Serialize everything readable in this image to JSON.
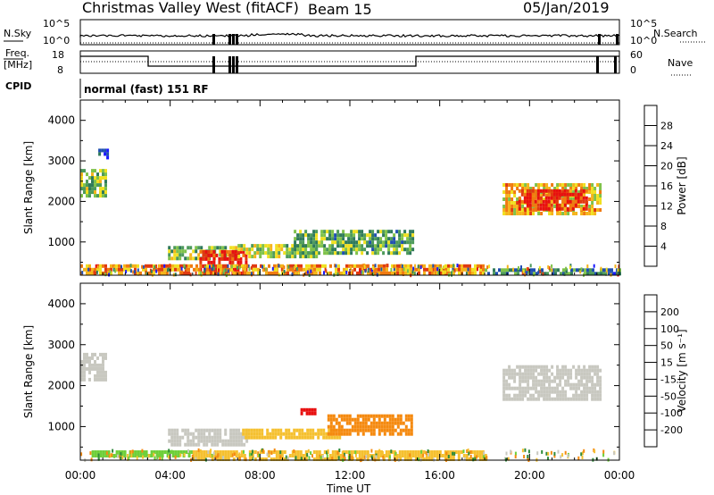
{
  "header": {
    "radar": "Christmas Valley West (fitACF)",
    "beam": "Beam 15",
    "date": "05/Jan/2019"
  },
  "ancillary": {
    "nsky_label": "N.Sky",
    "nsearch_label": "N.Search",
    "freq_label_1": "Freq.",
    "freq_label_2": "[MHz]",
    "nave_label": "Nave",
    "cpid_label": "CPID",
    "cpid_text": "normal (fast) 151 RF",
    "noise_top_tick": "10^5",
    "noise_bottom_tick": "10^0",
    "freq_ticks": [
      "18",
      "8"
    ],
    "nave_ticks": [
      "60",
      "0"
    ]
  },
  "colors": {
    "power": [
      "#1a1aff",
      "#1f4fb0",
      "#2f7a5a",
      "#4d9a5a",
      "#7fc24a",
      "#f0e020",
      "#f5b41a",
      "#f07a10",
      "#e03a10",
      "#e81010"
    ],
    "velocity": [
      "#e81010",
      "#f04a10",
      "#f58a10",
      "#f5c030",
      "#c8c8c0",
      "#6fcf3a",
      "#2f8a3a",
      "#2040b0",
      "#1a1aff"
    ]
  },
  "chart_data": [
    {
      "type": "heatmap",
      "panel": "power",
      "ylabel": "Slant Range [km]",
      "yticks": [
        "1000",
        "2000",
        "3000",
        "4000"
      ],
      "ylim": [
        180,
        4500
      ],
      "xlim": [
        0,
        24
      ],
      "colorbar_label": "Power [dB]",
      "colorbar_ticks": [
        "4",
        "8",
        "12",
        "16",
        "20",
        "24",
        "28"
      ],
      "colorbar_range": [
        0,
        32
      ],
      "regions": [
        {
          "t0": 0.0,
          "t1": 1.1,
          "r0": 2150,
          "r1": 2800,
          "value": 14
        },
        {
          "t0": 0.8,
          "t1": 1.2,
          "r0": 3050,
          "r1": 3300,
          "value": 6
        },
        {
          "t0": 3.9,
          "t1": 7.0,
          "r0": 550,
          "r1": 900,
          "value": 14
        },
        {
          "t0": 5.3,
          "t1": 7.4,
          "r0": 250,
          "r1": 800,
          "value": 30
        },
        {
          "t0": 7.0,
          "t1": 10.5,
          "r0": 600,
          "r1": 950,
          "value": 15
        },
        {
          "t0": 9.5,
          "t1": 14.8,
          "r0": 750,
          "r1": 1300,
          "value": 12
        },
        {
          "t0": 18.8,
          "t1": 23.2,
          "r0": 1700,
          "r1": 2450,
          "value": 20
        },
        {
          "t0": 19.5,
          "t1": 22.5,
          "r0": 1800,
          "r1": 2300,
          "value": 28
        },
        {
          "t0": 0.0,
          "t1": 18.0,
          "r0": 200,
          "r1": 450,
          "value": 22
        },
        {
          "t0": 18.0,
          "t1": 24.0,
          "r0": 200,
          "r1": 350,
          "value": 9
        }
      ]
    },
    {
      "type": "heatmap",
      "panel": "velocity",
      "ylabel": "Slant Range [km]",
      "yticks": [
        "1000",
        "2000",
        "3000",
        "4000"
      ],
      "ylim": [
        180,
        4500
      ],
      "xlim": [
        0,
        24
      ],
      "colorbar_label": "Velocity [m s⁻¹]",
      "colorbar_ticks": [
        "-200",
        "-100",
        "-50",
        "-15",
        "15",
        "50",
        "100",
        "200"
      ],
      "regions": [
        {
          "t0": 0.0,
          "t1": 1.1,
          "r0": 2150,
          "r1": 2800,
          "value": 0
        },
        {
          "t0": 3.9,
          "t1": 7.4,
          "r0": 550,
          "r1": 950,
          "value": 0
        },
        {
          "t0": 7.2,
          "t1": 11.5,
          "r0": 700,
          "r1": 950,
          "value": -40
        },
        {
          "t0": 11.0,
          "t1": 14.8,
          "r0": 850,
          "r1": 1300,
          "value": -60
        },
        {
          "t0": 18.8,
          "t1": 23.2,
          "r0": 1700,
          "r1": 2500,
          "value": 0
        },
        {
          "t0": 0.5,
          "t1": 5.0,
          "r0": 250,
          "r1": 420,
          "value": 30
        },
        {
          "t0": 5.0,
          "t1": 18.0,
          "r0": 220,
          "r1": 420,
          "value": -30
        },
        {
          "t0": 9.8,
          "t1": 10.4,
          "r0": 1300,
          "r1": 1450,
          "value": -220
        }
      ]
    }
  ],
  "x_axis": {
    "label": "Time UT",
    "ticks": [
      "00:00",
      "04:00",
      "08:00",
      "12:00",
      "16:00",
      "20:00",
      "00:00"
    ]
  }
}
